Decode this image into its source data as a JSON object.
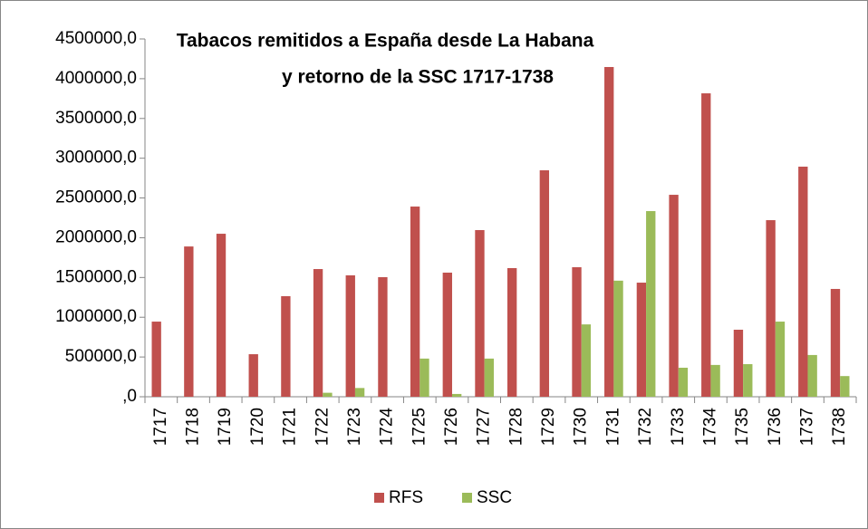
{
  "chart_data": {
    "type": "bar",
    "title": [
      "Tabacos remitidos a España desde La Habana",
      "y retorno de la SSC 1717-1738"
    ],
    "categories": [
      "1717",
      "1718",
      "1719",
      "1720",
      "1721",
      "1722",
      "1723",
      "1724",
      "1725",
      "1726",
      "1727",
      "1728",
      "1729",
      "1730",
      "1731",
      "1732",
      "1733",
      "1734",
      "1735",
      "1736",
      "1737",
      "1738"
    ],
    "series": [
      {
        "name": "RFS",
        "color": "#c0504d",
        "values": [
          945000,
          1890000,
          2050000,
          535000,
          1265000,
          1606000,
          1527000,
          1504000,
          2392000,
          1561000,
          2096000,
          1618000,
          2848000,
          1629000,
          4147000,
          1435000,
          2540000,
          3816000,
          843000,
          2221000,
          2894000,
          1356000
        ]
      },
      {
        "name": "SSC",
        "color": "#9bbb59",
        "values": [
          0,
          0,
          0,
          0,
          0,
          50000,
          110000,
          0,
          480000,
          35000,
          480000,
          0,
          0,
          910000,
          1460000,
          2335000,
          365000,
          400000,
          410000,
          945000,
          525000,
          260000
        ]
      }
    ],
    "ylim": [
      0,
      4500000
    ],
    "yticks": [
      {
        "value": 0,
        "label": ",0"
      },
      {
        "value": 500000,
        "label": "500000,0"
      },
      {
        "value": 1000000,
        "label": "1000000,0"
      },
      {
        "value": 1500000,
        "label": "1500000,0"
      },
      {
        "value": 2000000,
        "label": "2000000,0"
      },
      {
        "value": 2500000,
        "label": "2500000,0"
      },
      {
        "value": 3000000,
        "label": "3000000,0"
      },
      {
        "value": 3500000,
        "label": "3500000,0"
      },
      {
        "value": 4000000,
        "label": "4000000,0"
      },
      {
        "value": 4500000,
        "label": "4500000,0"
      }
    ],
    "grid": false,
    "legend": "bottom"
  }
}
